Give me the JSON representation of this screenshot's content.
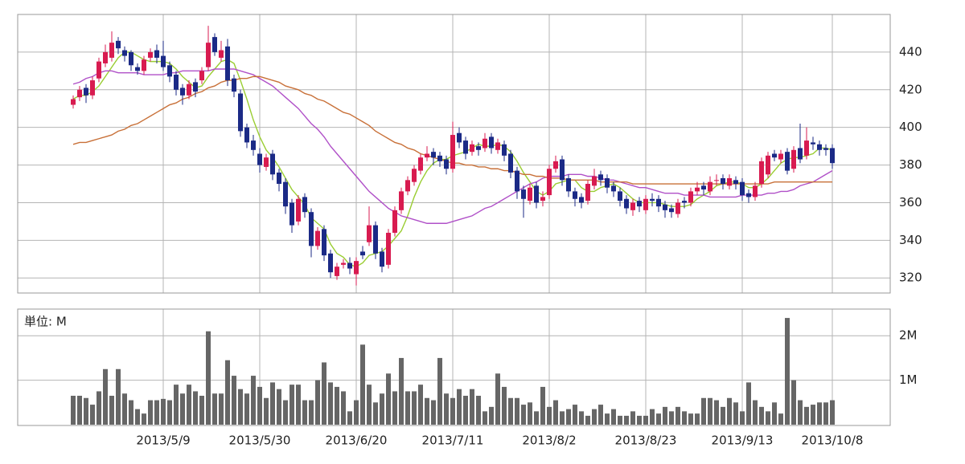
{
  "chart_data": [
    {
      "type": "candlestick",
      "categories": [
        null,
        null,
        null,
        null,
        null,
        null,
        null,
        null,
        null,
        null,
        null,
        null,
        null,
        null,
        "2013/5/9",
        null,
        null,
        null,
        null,
        null,
        null,
        null,
        null,
        null,
        null,
        null,
        null,
        null,
        null,
        "2013/5/30",
        null,
        null,
        null,
        null,
        null,
        null,
        null,
        null,
        null,
        null,
        null,
        null,
        null,
        null,
        "2013/6/20",
        null,
        null,
        null,
        null,
        null,
        null,
        null,
        null,
        null,
        null,
        null,
        null,
        null,
        null,
        "2013/7/11",
        null,
        null,
        null,
        null,
        null,
        null,
        null,
        null,
        null,
        null,
        null,
        null,
        null,
        null,
        "2013/8/2",
        null,
        null,
        null,
        null,
        null,
        null,
        null,
        null,
        null,
        null,
        null,
        null,
        null,
        null,
        "2013/8/23",
        null,
        null,
        null,
        null,
        null,
        null,
        null,
        null,
        null,
        null,
        null,
        null,
        null,
        null,
        "2013/9/13",
        null,
        null,
        null,
        null,
        null,
        null,
        null,
        null,
        null,
        null,
        null,
        null,
        null,
        "2013/10/8"
      ],
      "open": [
        412,
        416,
        421,
        417,
        426,
        434,
        437,
        446,
        441,
        440,
        432,
        430,
        437,
        441,
        438,
        433,
        428,
        421,
        417,
        424,
        425,
        432,
        448,
        437,
        443,
        426,
        418,
        400,
        393,
        386,
        379,
        386,
        376,
        371,
        360,
        350,
        363,
        355,
        337,
        346,
        333,
        321,
        327,
        328,
        322,
        334,
        339,
        348,
        334,
        327,
        344,
        356,
        366,
        371,
        377,
        384,
        387,
        385,
        383,
        378,
        397,
        393,
        387,
        390,
        389,
        395,
        388,
        391,
        386,
        377,
        367,
        361,
        369,
        361,
        364,
        378,
        383,
        373,
        366,
        363,
        361,
        369,
        375,
        373,
        369,
        366,
        362,
        356,
        361,
        356,
        362,
        362,
        359,
        357,
        354,
        361,
        360,
        366,
        369,
        366,
        372,
        373,
        369,
        372,
        371,
        365,
        363,
        370,
        375,
        386,
        383,
        387,
        378,
        389,
        385,
        392,
        391,
        389,
        389
      ],
      "high": [
        417,
        422,
        423,
        427,
        437,
        444,
        451,
        448,
        443,
        441,
        434,
        438,
        442,
        444,
        446,
        435,
        430,
        423,
        425,
        426,
        432,
        454,
        450,
        446,
        447,
        428,
        420,
        402,
        396,
        389,
        386,
        388,
        378,
        373,
        362,
        364,
        365,
        357,
        347,
        348,
        335,
        328,
        330,
        331,
        331,
        337,
        358,
        350,
        336,
        346,
        358,
        368,
        374,
        380,
        386,
        390,
        389,
        387,
        385,
        403,
        400,
        395,
        393,
        392,
        397,
        397,
        394,
        393,
        388,
        379,
        369,
        370,
        371,
        366,
        380,
        385,
        385,
        375,
        368,
        365,
        372,
        378,
        377,
        375,
        371,
        368,
        364,
        362,
        363,
        364,
        365,
        364,
        361,
        359,
        362,
        363,
        368,
        371,
        371,
        374,
        375,
        375,
        375,
        374,
        373,
        367,
        371,
        384,
        387,
        388,
        388,
        389,
        390,
        402,
        400,
        395,
        393,
        391,
        391
      ],
      "low": [
        410,
        414,
        413,
        415,
        424,
        432,
        435,
        439,
        435,
        430,
        428,
        428,
        435,
        434,
        430,
        424,
        417,
        412,
        415,
        416,
        423,
        430,
        438,
        435,
        422,
        416,
        395,
        389,
        385,
        376,
        377,
        372,
        366,
        354,
        344,
        348,
        352,
        331,
        335,
        329,
        320,
        319,
        325,
        322,
        316,
        330,
        337,
        330,
        323,
        325,
        342,
        354,
        364,
        369,
        375,
        382,
        380,
        379,
        375,
        376,
        389,
        383,
        385,
        385,
        387,
        386,
        386,
        382,
        373,
        362,
        352,
        359,
        357,
        358,
        362,
        376,
        369,
        363,
        358,
        357,
        359,
        367,
        369,
        365,
        363,
        358,
        354,
        353,
        355,
        354,
        358,
        355,
        352,
        352,
        352,
        357,
        358,
        364,
        364,
        364,
        369,
        367,
        367,
        367,
        361,
        360,
        361,
        368,
        373,
        382,
        381,
        375,
        376,
        381,
        383,
        388,
        385,
        385,
        378
      ],
      "close": [
        415,
        420,
        417,
        425,
        435,
        440,
        445,
        442,
        438,
        433,
        430,
        436,
        440,
        437,
        432,
        427,
        420,
        417,
        423,
        419,
        430,
        445,
        440,
        441,
        425,
        419,
        398,
        392,
        388,
        380,
        384,
        375,
        370,
        358,
        348,
        362,
        355,
        337,
        345,
        332,
        323,
        326,
        328,
        325,
        329,
        332,
        348,
        333,
        326,
        344,
        356,
        366,
        372,
        378,
        384,
        386,
        384,
        382,
        378,
        396,
        392,
        386,
        391,
        388,
        394,
        389,
        392,
        385,
        376,
        366,
        362,
        368,
        360,
        363,
        378,
        382,
        372,
        366,
        362,
        360,
        370,
        374,
        372,
        368,
        366,
        361,
        357,
        360,
        358,
        362,
        361,
        358,
        356,
        355,
        360,
        360,
        366,
        368,
        367,
        371,
        372,
        370,
        373,
        370,
        364,
        363,
        369,
        382,
        385,
        384,
        386,
        377,
        388,
        383,
        393,
        391,
        388,
        388,
        381
      ],
      "up_color": "#d81b50",
      "down_color": "#1b2a86",
      "lines": [
        {
          "color": "#9acd32",
          "values": [
            415,
            417,
            417,
            419,
            422,
            427,
            432,
            437,
            440,
            440,
            438,
            436,
            435,
            435,
            435,
            434,
            431,
            427,
            424,
            421,
            422,
            427,
            431,
            435,
            436,
            434,
            425,
            415,
            404,
            395,
            388,
            384,
            379,
            373,
            367,
            363,
            359,
            352,
            349,
            346,
            338,
            333,
            331,
            327,
            326,
            328,
            332,
            333,
            334,
            337,
            341,
            345,
            353,
            363,
            371,
            377,
            381,
            383,
            383,
            385,
            386,
            387,
            389,
            391,
            390,
            390,
            391,
            390,
            387,
            382,
            376,
            371,
            366,
            364,
            366,
            370,
            371,
            372,
            372,
            368,
            366,
            366,
            368,
            369,
            370,
            368,
            365,
            362,
            360,
            360,
            360,
            360,
            359,
            358,
            358,
            358,
            359,
            362,
            364,
            366,
            369,
            370,
            371,
            371,
            370,
            368,
            368,
            370,
            373,
            377,
            381,
            383,
            384,
            384,
            385,
            386,
            389,
            389,
            388
          ]
        },
        {
          "color": "#b050c8",
          "values": [
            423,
            424,
            426,
            427,
            429,
            430,
            430,
            429,
            429,
            429,
            429,
            428,
            428,
            428,
            428,
            429,
            429,
            430,
            430,
            430,
            430,
            430,
            431,
            431,
            431,
            431,
            430,
            429,
            428,
            426,
            424,
            422,
            419,
            416,
            413,
            410,
            406,
            402,
            399,
            395,
            390,
            386,
            382,
            378,
            374,
            370,
            366,
            363,
            360,
            357,
            355,
            353,
            352,
            351,
            350,
            349,
            349,
            349,
            349,
            350,
            351,
            352,
            353,
            355,
            357,
            358,
            360,
            362,
            364,
            366,
            368,
            370,
            371,
            373,
            374,
            374,
            374,
            375,
            375,
            375,
            374,
            374,
            373,
            372,
            372,
            371,
            370,
            369,
            368,
            368,
            367,
            366,
            365,
            365,
            365,
            364,
            364,
            364,
            364,
            363,
            363,
            363,
            363,
            363,
            364,
            364,
            364,
            364,
            365,
            365,
            366,
            366,
            367,
            369,
            370,
            371,
            373,
            375,
            377
          ]
        },
        {
          "color": "#c87038",
          "values": [
            391,
            392,
            392,
            393,
            394,
            395,
            396,
            398,
            399,
            401,
            402,
            404,
            406,
            408,
            410,
            412,
            413,
            415,
            416,
            418,
            419,
            421,
            422,
            424,
            425,
            425,
            426,
            426,
            427,
            427,
            426,
            425,
            424,
            422,
            421,
            420,
            418,
            417,
            415,
            414,
            412,
            410,
            408,
            407,
            405,
            403,
            401,
            398,
            396,
            394,
            392,
            391,
            389,
            388,
            386,
            385,
            384,
            383,
            382,
            381,
            381,
            380,
            380,
            379,
            379,
            378,
            378,
            377,
            377,
            376,
            375,
            375,
            374,
            374,
            373,
            373,
            373,
            372,
            372,
            372,
            372,
            372,
            371,
            371,
            371,
            371,
            371,
            370,
            370,
            370,
            370,
            370,
            370,
            370,
            370,
            370,
            370,
            370,
            370,
            370,
            370,
            370,
            370,
            370,
            370,
            370,
            370,
            370,
            370,
            371,
            371,
            371,
            371,
            371,
            371,
            371,
            371,
            371,
            371
          ]
        }
      ],
      "ylim": [
        312,
        460
      ],
      "yticks": [
        320,
        340,
        360,
        380,
        400,
        420,
        440
      ],
      "grid": true
    },
    {
      "type": "bar",
      "label": "単位: M",
      "color": "#666666",
      "values": [
        0.65,
        0.65,
        0.6,
        0.45,
        0.75,
        1.25,
        0.65,
        1.25,
        0.7,
        0.55,
        0.35,
        0.25,
        0.55,
        0.55,
        0.58,
        0.55,
        0.9,
        0.7,
        0.9,
        0.75,
        0.65,
        2.1,
        0.7,
        0.7,
        1.45,
        1.1,
        0.8,
        0.7,
        1.1,
        0.85,
        0.6,
        0.95,
        0.8,
        0.55,
        0.9,
        0.9,
        0.55,
        0.55,
        1.0,
        1.4,
        0.95,
        0.85,
        0.75,
        0.3,
        0.55,
        1.8,
        0.9,
        0.5,
        0.7,
        1.15,
        0.75,
        1.5,
        0.75,
        0.75,
        0.9,
        0.6,
        0.55,
        1.5,
        0.7,
        0.6,
        0.8,
        0.65,
        0.8,
        0.65,
        0.3,
        0.4,
        1.15,
        0.85,
        0.6,
        0.6,
        0.45,
        0.5,
        0.3,
        0.85,
        0.4,
        0.55,
        0.3,
        0.35,
        0.45,
        0.3,
        0.2,
        0.35,
        0.45,
        0.25,
        0.35,
        0.2,
        0.2,
        0.3,
        0.2,
        0.2,
        0.35,
        0.25,
        0.4,
        0.3,
        0.4,
        0.3,
        0.25,
        0.25,
        0.6,
        0.6,
        0.55,
        0.4,
        0.6,
        0.5,
        0.3,
        0.95,
        0.55,
        0.4,
        0.3,
        0.5,
        0.25,
        2.4,
        1.0,
        0.55,
        0.4,
        0.45,
        0.5,
        0.5,
        0.55
      ],
      "ylim": [
        0,
        2.6
      ],
      "yticks": [
        {
          "value": 1,
          "label": "1M"
        },
        {
          "value": 2,
          "label": "2M"
        }
      ],
      "grid": true
    }
  ]
}
